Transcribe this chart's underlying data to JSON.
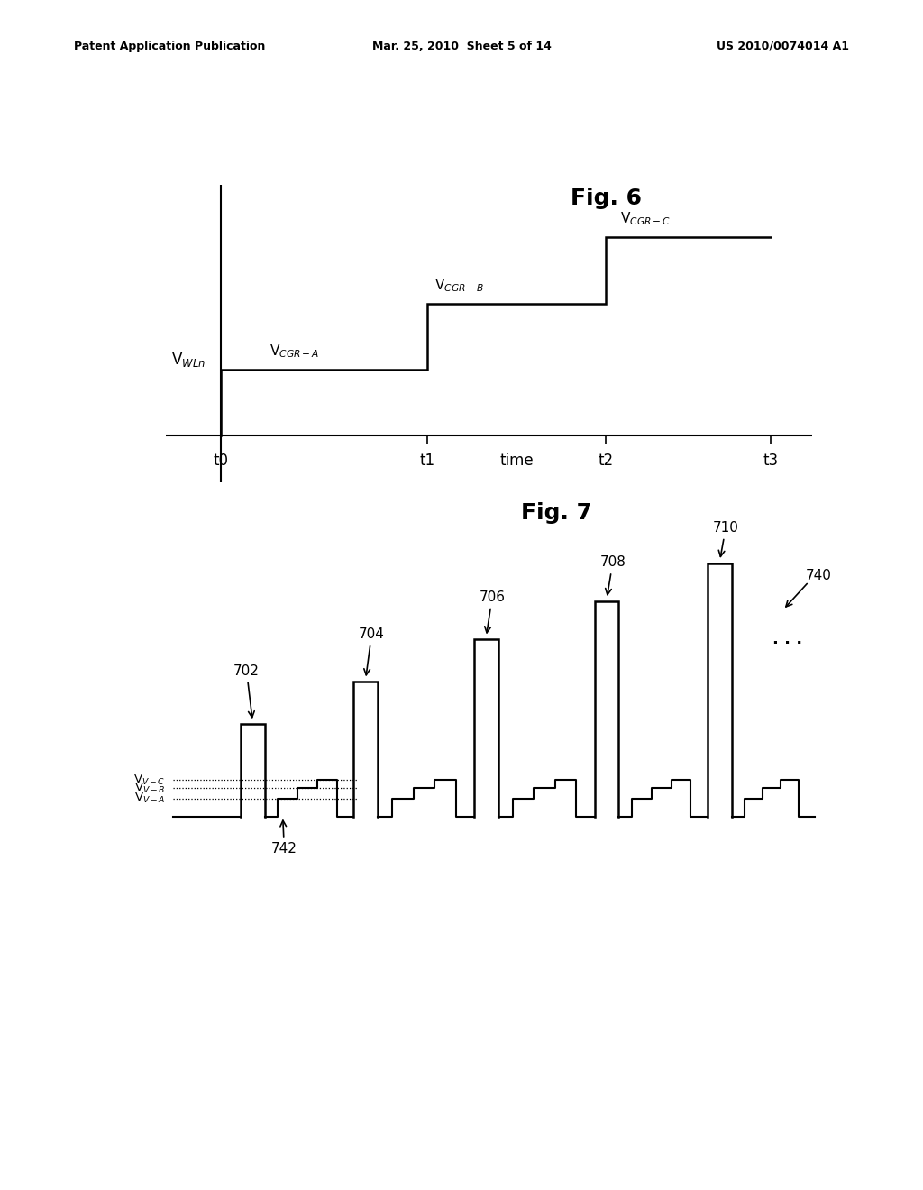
{
  "fig6_title": "Fig. 6",
  "fig7_title": "Fig. 7",
  "header_left": "Patent Application Publication",
  "header_center": "Mar. 25, 2010  Sheet 5 of 14",
  "header_right": "US 2010/0074014 A1",
  "bg_color": "#ffffff",
  "line_color": "#000000",
  "fig6": {
    "ylabel": "V$_{WLn}$",
    "xlabel": "time",
    "xticks": [
      "t0",
      "t1",
      "t2",
      "t3"
    ],
    "labels": {
      "VCGR_A": "V$_{CGR-A}$",
      "VCGR_B": "V$_{CGR-B}$",
      "VCGR_C": "V$_{CGR-C}$"
    }
  },
  "fig7": {
    "labels_702": "702",
    "labels_704": "704",
    "labels_706": "706",
    "labels_708": "708",
    "labels_710": "710",
    "labels_740": "740",
    "labels_742": "742",
    "vv_a": "V$_{V-A}$",
    "vv_b": "V$_{V-B}$",
    "vv_c": "V$_{V-C}$"
  }
}
